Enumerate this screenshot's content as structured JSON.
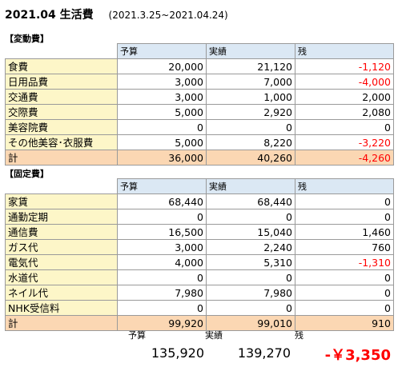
{
  "header": {
    "title": "2021.04  生活費",
    "period": "(2021.3.25~2021.04.24)"
  },
  "colors": {
    "negative": "#ff0000",
    "category_bg": "#fdf6c8",
    "header_bg": "#dbe8f4",
    "total_bg": "#fbd7b3"
  },
  "variable": {
    "label": "【変動費】",
    "headers": [
      "予算",
      "実績",
      "残"
    ],
    "rows": [
      {
        "name": "食費",
        "budget": "20,000",
        "actual": "21,120",
        "remain": "-1,120",
        "neg": true
      },
      {
        "name": "日用品費",
        "budget": "3,000",
        "actual": "7,000",
        "remain": "-4,000",
        "neg": true
      },
      {
        "name": "交通費",
        "budget": "3,000",
        "actual": "1,000",
        "remain": "2,000",
        "neg": false
      },
      {
        "name": "交際費",
        "budget": "5,000",
        "actual": "2,920",
        "remain": "2,080",
        "neg": false
      },
      {
        "name": "美容院費",
        "budget": "0",
        "actual": "0",
        "remain": "0",
        "neg": false
      },
      {
        "name": "その他美容･衣服費",
        "budget": "5,000",
        "actual": "8,220",
        "remain": "-3,220",
        "neg": true
      }
    ],
    "total": {
      "name": "計",
      "budget": "36,000",
      "actual": "40,260",
      "remain": "-4,260",
      "neg": true
    }
  },
  "fixed": {
    "label": "【固定費】",
    "headers": [
      "予算",
      "実績",
      "残"
    ],
    "rows": [
      {
        "name": "家賃",
        "budget": "68,440",
        "actual": "68,440",
        "remain": "0",
        "neg": false
      },
      {
        "name": "通勤定期",
        "budget": "0",
        "actual": "0",
        "remain": "0",
        "neg": false
      },
      {
        "name": "通信費",
        "budget": "16,500",
        "actual": "15,040",
        "remain": "1,460",
        "neg": false
      },
      {
        "name": "ガス代",
        "budget": "3,000",
        "actual": "2,240",
        "remain": "760",
        "neg": false
      },
      {
        "name": "電気代",
        "budget": "4,000",
        "actual": "5,310",
        "remain": "-1,310",
        "neg": true
      },
      {
        "name": "水道代",
        "budget": "0",
        "actual": "0",
        "remain": "0",
        "neg": false
      },
      {
        "name": "ネイル代",
        "budget": "7,980",
        "actual": "7,980",
        "remain": "0",
        "neg": false
      },
      {
        "name": "NHK受信料",
        "budget": "0",
        "actual": "0",
        "remain": "0",
        "neg": false
      }
    ],
    "total": {
      "name": "計",
      "budget": "99,920",
      "actual": "99,010",
      "remain": "910",
      "neg": false
    }
  },
  "summary": {
    "labels": [
      "予算",
      "実績",
      "残"
    ],
    "budget": "135,920",
    "actual": "139,270",
    "remain": "-￥3,350"
  }
}
